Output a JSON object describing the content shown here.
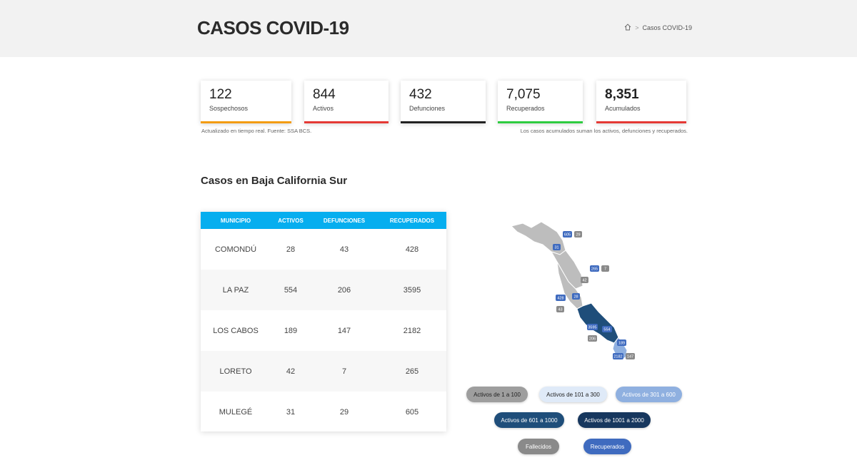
{
  "header": {
    "title": "CASOS COVID-19",
    "breadcrumb_current": "Casos COVID-19",
    "breadcrumb_separator": ">"
  },
  "stats": [
    {
      "value": "122",
      "label": "Sospechosos",
      "color": "#f39c12"
    },
    {
      "value": "844",
      "label": "Activos",
      "color": "#e53935"
    },
    {
      "value": "432",
      "label": "Defunciones",
      "color": "#222222"
    },
    {
      "value": "7,075",
      "label": "Recuperados",
      "color": "#2ecc40"
    },
    {
      "value": "8,351",
      "label": "Acumulados",
      "color": "#e53935"
    }
  ],
  "notes": {
    "left": "Actualizado en tiempo real. Fuente: SSA BCS.",
    "right": "Los casos acumulados suman los activos, defunciones y recuperados."
  },
  "section_title": "Casos en Baja California Sur",
  "table": {
    "header_color": "#06aeef",
    "columns": [
      "MUNICIPIO",
      "ACTIVOS",
      "DEFUNCIONES",
      "RECUPERADOS"
    ],
    "rows": [
      [
        "COMONDÚ",
        "28",
        "43",
        "428"
      ],
      [
        "LA PAZ",
        "554",
        "206",
        "3595"
      ],
      [
        "LOS CABOS",
        "189",
        "147",
        "2182"
      ],
      [
        "LORETO",
        "42",
        "7",
        "265"
      ],
      [
        "MULEGÉ",
        "31",
        "29",
        "605"
      ]
    ]
  },
  "map_badges": {
    "mulege_recup": "605",
    "mulege_def": "29",
    "mulege_act": "31",
    "loreto_recup": "265",
    "loreto_def": "7",
    "loreto_act": "42",
    "comondu_recup": "428",
    "comondu_act": "28",
    "comondu_def": "43",
    "lapaz_recup": "3595",
    "lapaz_act": "554",
    "lapaz_def": "206",
    "cabos_act": "189",
    "cabos_recup": "2182",
    "cabos_def": "147"
  },
  "legend": [
    {
      "label": "Activos de 1 a 100",
      "bg": "#9e9e9e",
      "fg": "#222222"
    },
    {
      "label": "Activos de 101 a 300",
      "bg": "#dfeaf8",
      "fg": "#222222"
    },
    {
      "label": "Activos de 301 a 600",
      "bg": "#8fb0e0",
      "fg": "#ffffff"
    },
    {
      "label": "Activos de 601 a 1000",
      "bg": "#1f4e7a",
      "fg": "#ffffff"
    },
    {
      "label": "Activos de 1001 a 2000",
      "bg": "#17375e",
      "fg": "#ffffff"
    },
    {
      "label": "Fallecidos",
      "bg": "#8a8a8a",
      "fg": "#ffffff"
    },
    {
      "label": "Recuperados",
      "bg": "#3f6bbf",
      "fg": "#ffffff"
    }
  ]
}
